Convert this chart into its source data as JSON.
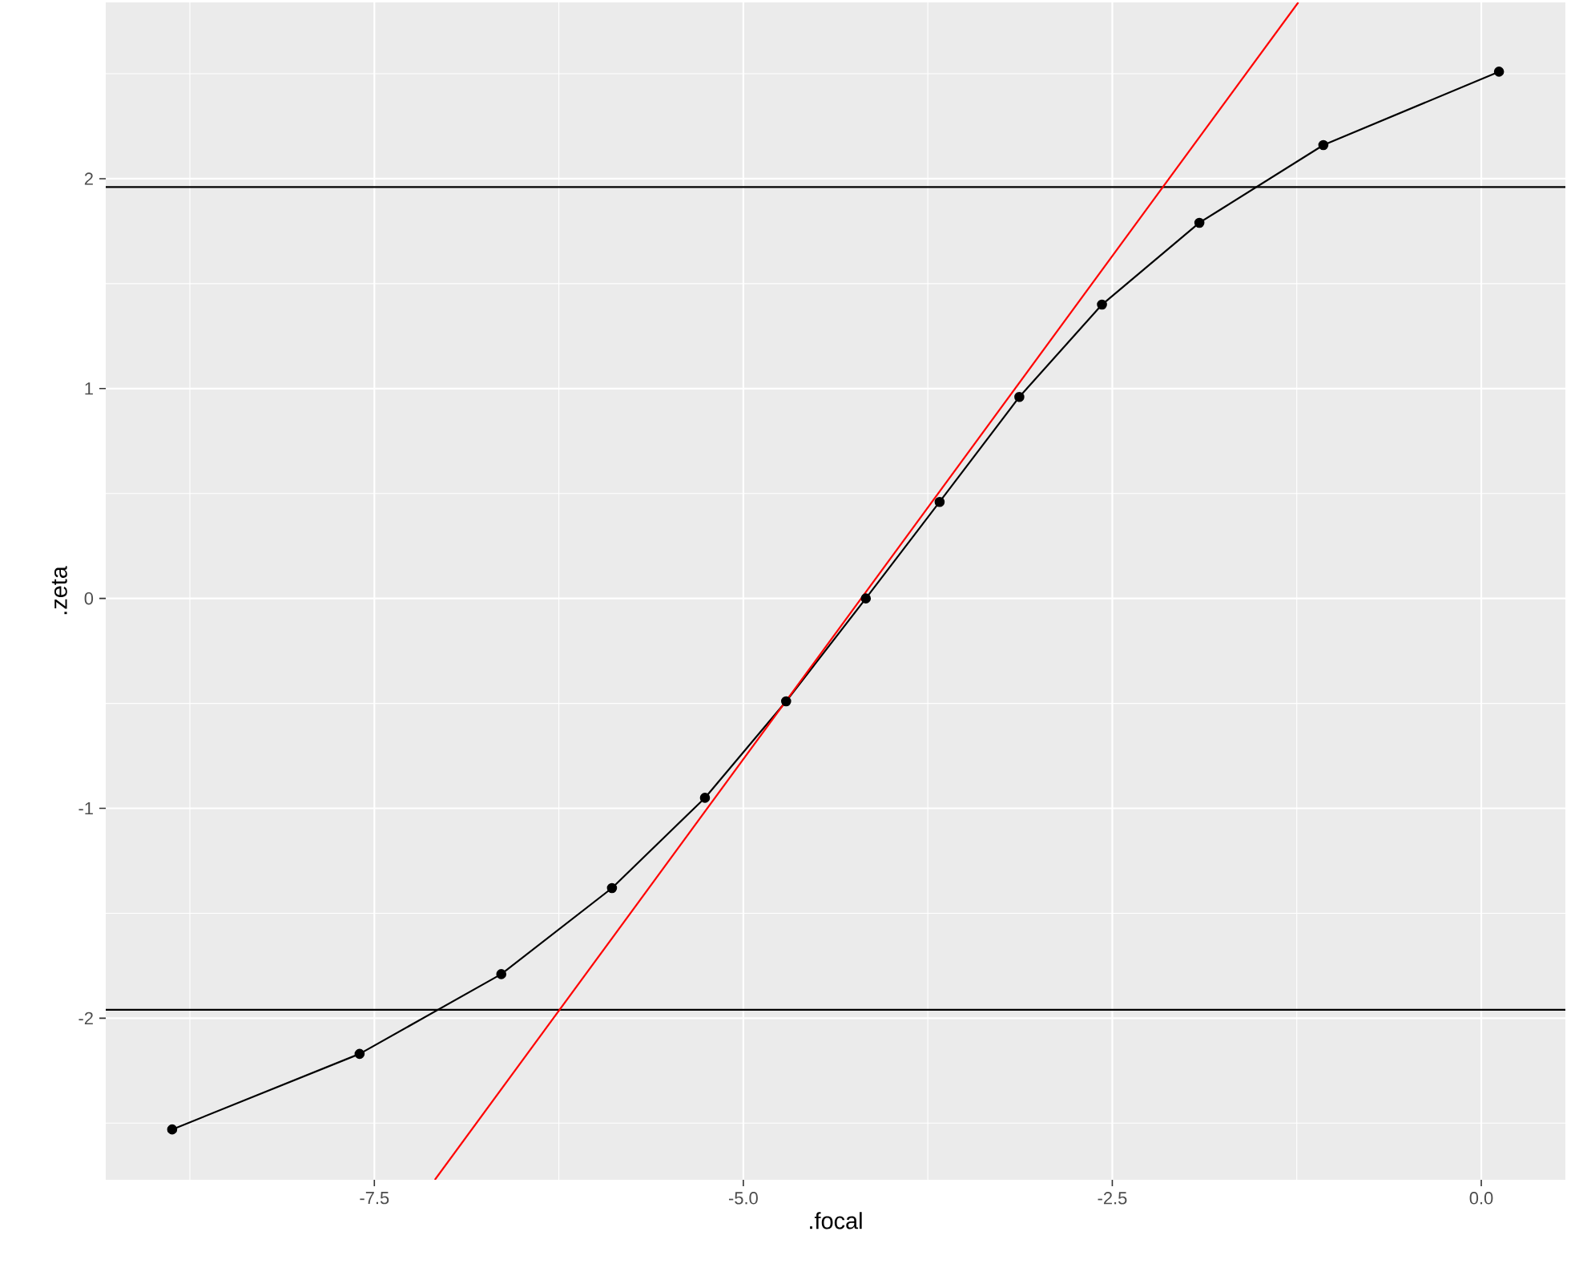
{
  "chart_data": {
    "type": "line",
    "xlabel": ".focal",
    "ylabel": ".zeta",
    "xlim": [
      -9.32,
      0.57
    ],
    "ylim": [
      -2.77,
      2.84
    ],
    "xticks": [
      {
        "value": -7.5,
        "label": "-7.5"
      },
      {
        "value": -5.0,
        "label": "-5.0"
      },
      {
        "value": -2.5,
        "label": "-2.5"
      },
      {
        "value": 0.0,
        "label": "0.0"
      }
    ],
    "yticks": [
      -2,
      -1,
      0,
      1,
      2
    ],
    "grid": true,
    "marker": "circle",
    "series": [
      {
        "color": "#000000",
        "x": [
          -8.87,
          -7.6,
          -6.64,
          -5.89,
          -5.26,
          -4.71,
          -4.17,
          -3.67,
          -3.13,
          -2.57,
          -1.91,
          -1.07,
          0.12
        ],
        "values": [
          -2.53,
          -2.17,
          -1.79,
          -1.38,
          -0.95,
          -0.49,
          0,
          0.46,
          0.96,
          1.4,
          1.79,
          2.16,
          2.51
        ]
      },
      {
        "type": "line",
        "marker": "none",
        "color": "#ff0000",
        "x": [
          -7.09,
          -1.24
        ],
        "values": [
          -2.77,
          2.84
        ]
      }
    ],
    "ref_lines": [
      {
        "axis": "y",
        "value": 1.96,
        "color": "#000000"
      },
      {
        "axis": "y",
        "value": -1.96,
        "color": "#000000"
      }
    ]
  }
}
